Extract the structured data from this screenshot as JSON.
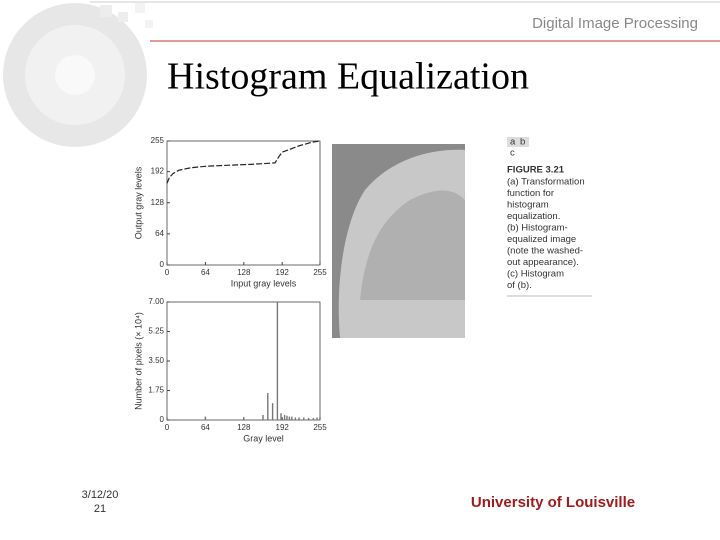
{
  "header": {
    "subtitle": "Digital Image Processing",
    "title": "Histogram Equalization"
  },
  "figure": {
    "panel_labels": [
      "a",
      "b",
      "c"
    ],
    "figure_label": "FIGURE 3.21",
    "caption_lines": [
      "(a) Transformation",
      "function for",
      "histogram",
      "equalization.",
      "(b) Histogram-",
      "equalized image",
      "(note the washed-",
      "out appearance).",
      "(c) Histogram",
      "of (b)."
    ]
  },
  "footer": {
    "date_lines": [
      "3/12/20",
      "21"
    ],
    "institution": "University of Louisville"
  },
  "chart_data": [
    {
      "type": "line",
      "x_label": "Input gray levels",
      "y_label": "Output gray levels",
      "color": "#222",
      "x": [
        0,
        4,
        10,
        20,
        40,
        64,
        100,
        140,
        180,
        186,
        192,
        220,
        240,
        255
      ],
      "values": [
        168,
        180,
        188,
        195,
        200,
        203,
        205,
        207,
        210,
        222,
        232,
        245,
        252,
        255
      ],
      "xlim": [
        0,
        255
      ],
      "xticks": [
        0,
        64,
        128,
        192,
        255
      ],
      "ylim": [
        0,
        255
      ],
      "yticks": [
        0,
        64,
        128,
        192,
        255
      ]
    },
    {
      "type": "bar",
      "x_label": "Gray level",
      "y_label": "Number of pixels (× 10⁴)",
      "color": "#777",
      "x": [
        64,
        160,
        168,
        176,
        184,
        190,
        196,
        200,
        204,
        208,
        214,
        220,
        228,
        236,
        244,
        250
      ],
      "values": [
        0.2,
        0.3,
        1.6,
        1.0,
        7.0,
        0.4,
        0.3,
        0.25,
        0.2,
        0.2,
        0.15,
        0.15,
        0.15,
        0.12,
        0.12,
        0.15
      ],
      "xlim": [
        0,
        255
      ],
      "xticks": [
        0,
        64,
        128,
        192,
        255
      ],
      "ylim": [
        0,
        7
      ],
      "yticks": [
        0,
        1.75,
        {
          "value": 3.5,
          "label": "3.50"
        },
        5.25,
        {
          "value": 7,
          "label": "7.00"
        }
      ]
    }
  ]
}
